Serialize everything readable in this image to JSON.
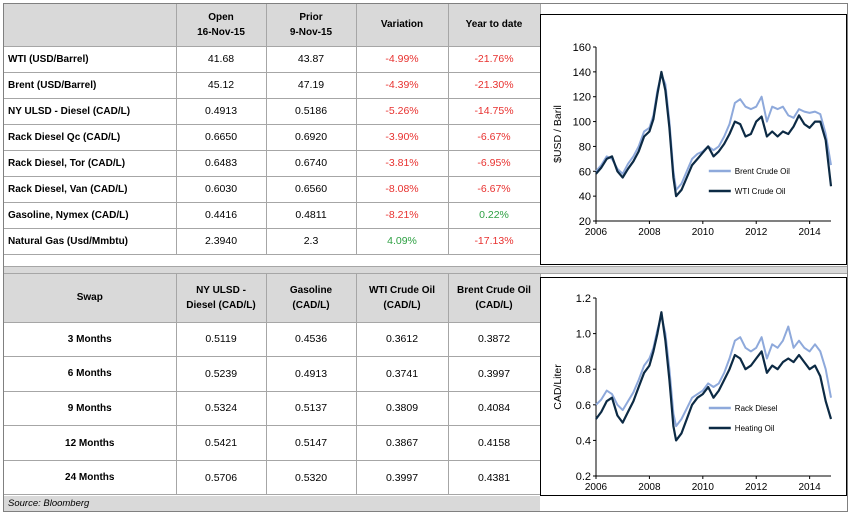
{
  "prices": {
    "headers": [
      "",
      "Open\n16-Nov-15",
      "Prior\n9-Nov-15",
      "Variation",
      "Year to date"
    ],
    "rows": [
      {
        "label": "WTI (USD/Barrel)",
        "open": "41.68",
        "prior": "43.87",
        "variation": "-4.99%",
        "ytd": "-21.76%"
      },
      {
        "label": "Brent (USD/Barrel)",
        "open": "45.12",
        "prior": "47.19",
        "variation": "-4.39%",
        "ytd": "-21.30%"
      },
      {
        "label": "NY ULSD - Diesel (CAD/L)",
        "open": "0.4913",
        "prior": "0.5186",
        "variation": "-5.26%",
        "ytd": "-14.75%"
      },
      {
        "label": "Rack Diesel Qc (CAD/L)",
        "open": "0.6650",
        "prior": "0.6920",
        "variation": "-3.90%",
        "ytd": "-6.67%"
      },
      {
        "label": "Rack Diesel, Tor (CAD/L)",
        "open": "0.6483",
        "prior": "0.6740",
        "variation": "-3.81%",
        "ytd": "-6.95%"
      },
      {
        "label": "Rack Diesel, Van (CAD/L)",
        "open": "0.6030",
        "prior": "0.6560",
        "variation": "-8.08%",
        "ytd": "-6.67%"
      },
      {
        "label": "Gasoline, Nymex (CAD/L)",
        "open": "0.4416",
        "prior": "0.4811",
        "variation": "-8.21%",
        "ytd": "0.22%"
      },
      {
        "label": "Natural Gas (Usd/Mmbtu)",
        "open": "2.3940",
        "prior": "2.3",
        "variation": "4.09%",
        "ytd": "-17.13%"
      }
    ]
  },
  "swaps": {
    "headers": [
      "Swap",
      "NY ULSD -\nDiesel (CAD/L)",
      "Gasoline\n(CAD/L)",
      "WTI Crude Oil\n(CAD/L)",
      "Brent Crude Oil\n(CAD/L)"
    ],
    "rows": [
      {
        "label": "3 Months",
        "ulsd": "0.5119",
        "gasoline": "0.4536",
        "wti": "0.3612",
        "brent": "0.3872"
      },
      {
        "label": "6 Months",
        "ulsd": "0.5239",
        "gasoline": "0.4913",
        "wti": "0.3741",
        "brent": "0.3997"
      },
      {
        "label": "9 Months",
        "ulsd": "0.5324",
        "gasoline": "0.5137",
        "wti": "0.3809",
        "brent": "0.4084"
      },
      {
        "label": "12 Months",
        "ulsd": "0.5421",
        "gasoline": "0.5147",
        "wti": "0.3867",
        "brent": "0.4158"
      },
      {
        "label": "24 Months",
        "ulsd": "0.5706",
        "gasoline": "0.5320",
        "wti": "0.3997",
        "brent": "0.4381"
      }
    ]
  },
  "source": "Source: Bloomberg",
  "colors": {
    "negative": "#e8312f",
    "positive": "#2ea043",
    "header_bg": "#d9d9d9",
    "series_light": "#8ea9db",
    "series_dark": "#0c2a44"
  },
  "chart_data": [
    {
      "type": "line",
      "ylabel": "$USD / Baril",
      "xlim": [
        2006,
        2014.8
      ],
      "ylim": [
        20,
        160
      ],
      "yticks": [
        20,
        40,
        60,
        80,
        100,
        120,
        140,
        160
      ],
      "xticks": [
        2006,
        2008,
        2010,
        2012,
        2014
      ],
      "legend": "bottom-right",
      "series": [
        {
          "name": "Brent Crude Oil",
          "color": "#8ea9db",
          "x": [
            2006,
            2006.2,
            2006.4,
            2006.6,
            2006.8,
            2007,
            2007.2,
            2007.4,
            2007.6,
            2007.8,
            2008,
            2008.15,
            2008.3,
            2008.45,
            2008.6,
            2008.75,
            2008.9,
            2009,
            2009.2,
            2009.4,
            2009.6,
            2009.8,
            2010,
            2010.2,
            2010.4,
            2010.6,
            2010.8,
            2011,
            2011.2,
            2011.4,
            2011.6,
            2011.8,
            2012,
            2012.2,
            2012.4,
            2012.6,
            2012.8,
            2013,
            2013.2,
            2013.4,
            2013.6,
            2013.8,
            2014,
            2014.2,
            2014.4,
            2014.6,
            2014.8
          ],
          "y": [
            60,
            65,
            72,
            70,
            62,
            58,
            66,
            72,
            80,
            92,
            95,
            105,
            125,
            138,
            130,
            100,
            60,
            45,
            50,
            60,
            70,
            74,
            76,
            80,
            77,
            80,
            88,
            98,
            115,
            118,
            112,
            110,
            112,
            120,
            100,
            112,
            110,
            112,
            105,
            103,
            110,
            108,
            107,
            108,
            106,
            90,
            65
          ]
        },
        {
          "name": "WTI Crude Oil",
          "color": "#0c2a44",
          "x": [
            2006,
            2006.2,
            2006.4,
            2006.6,
            2006.8,
            2007,
            2007.2,
            2007.4,
            2007.6,
            2007.8,
            2008,
            2008.15,
            2008.3,
            2008.45,
            2008.6,
            2008.75,
            2008.9,
            2009,
            2009.2,
            2009.4,
            2009.6,
            2009.8,
            2010,
            2010.2,
            2010.4,
            2010.6,
            2010.8,
            2011,
            2011.2,
            2011.4,
            2011.6,
            2011.8,
            2012,
            2012.2,
            2012.4,
            2012.6,
            2012.8,
            2013,
            2013.2,
            2013.4,
            2013.6,
            2013.8,
            2014,
            2014.2,
            2014.4,
            2014.6,
            2014.8
          ],
          "y": [
            58,
            63,
            70,
            72,
            60,
            55,
            62,
            68,
            76,
            88,
            92,
            102,
            122,
            140,
            125,
            95,
            55,
            40,
            45,
            55,
            65,
            70,
            75,
            80,
            72,
            76,
            82,
            90,
            100,
            98,
            88,
            90,
            100,
            104,
            88,
            92,
            88,
            92,
            90,
            96,
            105,
            98,
            95,
            100,
            100,
            85,
            48
          ]
        }
      ]
    },
    {
      "type": "line",
      "ylabel": "CAD/Liter",
      "xlim": [
        2006,
        2014.8
      ],
      "ylim": [
        0.2,
        1.2
      ],
      "yticks": [
        0.2,
        0.4,
        0.6,
        0.8,
        1.0,
        1.2
      ],
      "xticks": [
        2006,
        2008,
        2010,
        2012,
        2014
      ],
      "legend": "bottom-right",
      "series": [
        {
          "name": "Rack Diesel",
          "color": "#8ea9db",
          "x": [
            2006,
            2006.2,
            2006.4,
            2006.6,
            2006.8,
            2007,
            2007.2,
            2007.4,
            2007.6,
            2007.8,
            2008,
            2008.15,
            2008.3,
            2008.45,
            2008.6,
            2008.75,
            2008.9,
            2009,
            2009.2,
            2009.4,
            2009.6,
            2009.8,
            2010,
            2010.2,
            2010.4,
            2010.6,
            2010.8,
            2011,
            2011.2,
            2011.4,
            2011.6,
            2011.8,
            2012,
            2012.2,
            2012.4,
            2012.6,
            2012.8,
            2013,
            2013.2,
            2013.4,
            2013.6,
            2013.8,
            2014,
            2014.2,
            2014.4,
            2014.6,
            2014.8
          ],
          "y": [
            0.6,
            0.63,
            0.68,
            0.66,
            0.6,
            0.57,
            0.62,
            0.67,
            0.74,
            0.82,
            0.86,
            0.92,
            1.02,
            1.1,
            1.0,
            0.8,
            0.55,
            0.48,
            0.52,
            0.58,
            0.64,
            0.66,
            0.68,
            0.72,
            0.7,
            0.72,
            0.78,
            0.86,
            0.96,
            0.98,
            0.92,
            0.9,
            0.92,
            0.98,
            0.86,
            0.94,
            0.92,
            0.96,
            1.04,
            0.92,
            0.96,
            0.92,
            0.9,
            0.94,
            0.9,
            0.8,
            0.64
          ]
        },
        {
          "name": "Heating Oil",
          "color": "#0c2a44",
          "x": [
            2006,
            2006.2,
            2006.4,
            2006.6,
            2006.8,
            2007,
            2007.2,
            2007.4,
            2007.6,
            2007.8,
            2008,
            2008.15,
            2008.3,
            2008.45,
            2008.6,
            2008.75,
            2008.9,
            2009,
            2009.2,
            2009.4,
            2009.6,
            2009.8,
            2010,
            2010.2,
            2010.4,
            2010.6,
            2010.8,
            2011,
            2011.2,
            2011.4,
            2011.6,
            2011.8,
            2012,
            2012.2,
            2012.4,
            2012.6,
            2012.8,
            2013,
            2013.2,
            2013.4,
            2013.6,
            2013.8,
            2014,
            2014.2,
            2014.4,
            2014.6,
            2014.8
          ],
          "y": [
            0.52,
            0.56,
            0.62,
            0.64,
            0.54,
            0.5,
            0.56,
            0.62,
            0.7,
            0.78,
            0.82,
            0.9,
            1.0,
            1.12,
            0.96,
            0.74,
            0.48,
            0.4,
            0.44,
            0.52,
            0.6,
            0.64,
            0.66,
            0.7,
            0.64,
            0.68,
            0.74,
            0.8,
            0.88,
            0.86,
            0.8,
            0.82,
            0.86,
            0.9,
            0.78,
            0.82,
            0.8,
            0.84,
            0.86,
            0.84,
            0.88,
            0.84,
            0.8,
            0.82,
            0.76,
            0.62,
            0.52
          ]
        }
      ]
    }
  ]
}
